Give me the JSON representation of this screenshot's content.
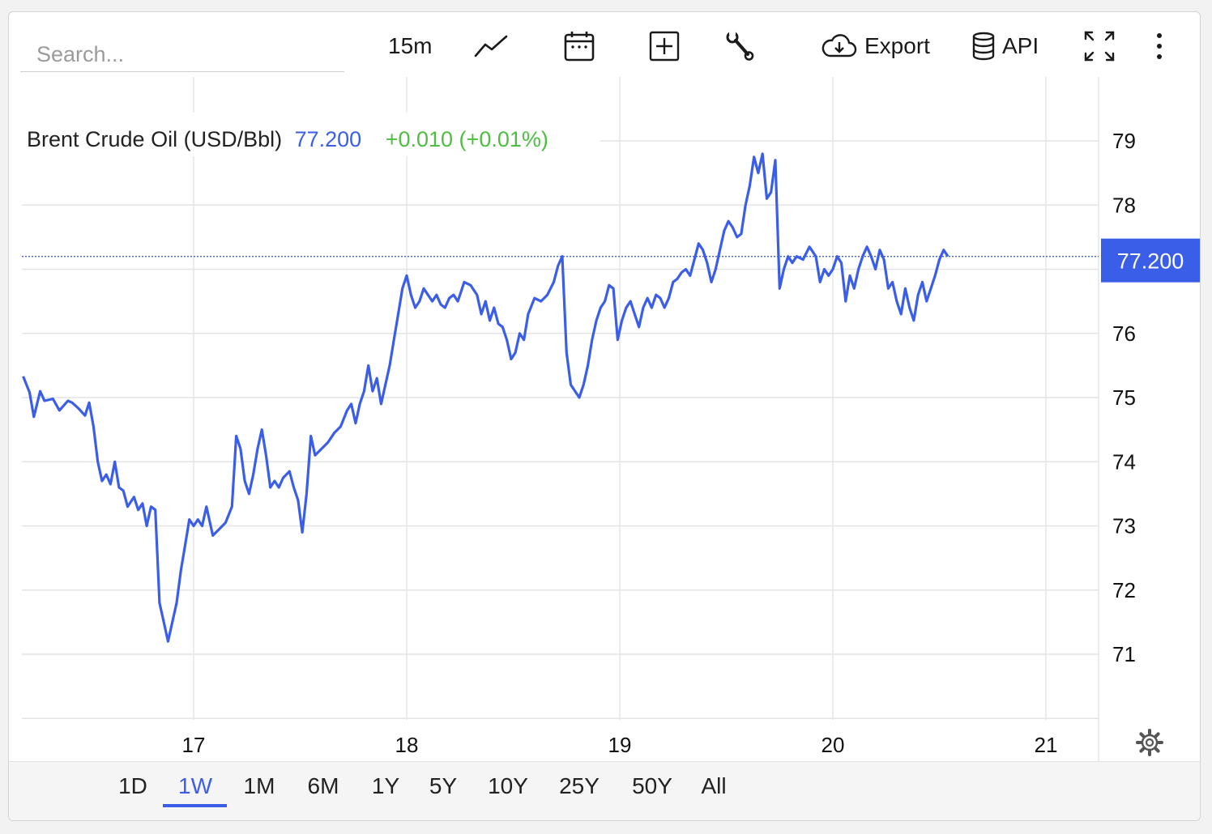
{
  "toolbar": {
    "search_placeholder": "Search...",
    "interval": "15m",
    "export_label": "Export",
    "api_label": "API",
    "icons": [
      "line-chart-icon",
      "calendar-icon",
      "add-box-icon",
      "wrench-icon",
      "cloud-download-icon",
      "database-icon",
      "fullscreen-icon",
      "more-vertical-icon"
    ]
  },
  "legend": {
    "title": "Brent Crude Oil (USD/Bbl)",
    "price": "77.200",
    "change": "+0.010 (+0.01%)"
  },
  "price_tag": "77.200",
  "ranges": [
    "1D",
    "1W",
    "1M",
    "6M",
    "1Y",
    "5Y",
    "10Y",
    "25Y",
    "50Y",
    "All"
  ],
  "active_range": "1W",
  "colors": {
    "line": "#3b5ee8",
    "up": "#4dbf3f",
    "tag_bg": "#3b5ee8",
    "grid": "#e4e4e4"
  },
  "chart_data": {
    "type": "line",
    "title": "Brent Crude Oil (USD/Bbl)",
    "x_unit": "day",
    "xlim": [
      16.2,
      21.25
    ],
    "ylim": [
      70.0,
      79.8
    ],
    "x_ticks": [
      17,
      18,
      19,
      20,
      21
    ],
    "y_ticks": [
      71,
      72,
      73,
      74,
      75,
      76,
      77,
      78,
      79
    ],
    "last_value": 77.2,
    "grid": true,
    "series": [
      {
        "name": "Brent Crude Oil",
        "points": [
          [
            16.2,
            75.33
          ],
          [
            16.23,
            75.08
          ],
          [
            16.25,
            74.7
          ],
          [
            16.28,
            75.1
          ],
          [
            16.3,
            74.95
          ],
          [
            16.34,
            74.98
          ],
          [
            16.37,
            74.8
          ],
          [
            16.41,
            74.95
          ],
          [
            16.43,
            74.92
          ],
          [
            16.46,
            74.83
          ],
          [
            16.49,
            74.72
          ],
          [
            16.51,
            74.92
          ],
          [
            16.53,
            74.55
          ],
          [
            16.55,
            74.0
          ],
          [
            16.57,
            73.7
          ],
          [
            16.59,
            73.8
          ],
          [
            16.61,
            73.65
          ],
          [
            16.63,
            74.0
          ],
          [
            16.65,
            73.6
          ],
          [
            16.67,
            73.55
          ],
          [
            16.69,
            73.3
          ],
          [
            16.72,
            73.45
          ],
          [
            16.74,
            73.25
          ],
          [
            16.76,
            73.35
          ],
          [
            16.78,
            73.0
          ],
          [
            16.8,
            73.3
          ],
          [
            16.82,
            73.25
          ],
          [
            16.84,
            71.8
          ],
          [
            16.86,
            71.5
          ],
          [
            16.88,
            71.2
          ],
          [
            16.9,
            71.5
          ],
          [
            16.92,
            71.8
          ],
          [
            16.94,
            72.3
          ],
          [
            16.96,
            72.7
          ],
          [
            16.98,
            73.1
          ],
          [
            17.0,
            73.0
          ],
          [
            17.02,
            73.1
          ],
          [
            17.04,
            73.0
          ],
          [
            17.06,
            73.3
          ],
          [
            17.09,
            72.85
          ],
          [
            17.12,
            72.95
          ],
          [
            17.15,
            73.05
          ],
          [
            17.18,
            73.3
          ],
          [
            17.2,
            74.4
          ],
          [
            17.22,
            74.2
          ],
          [
            17.24,
            73.7
          ],
          [
            17.26,
            73.5
          ],
          [
            17.28,
            73.8
          ],
          [
            17.3,
            74.2
          ],
          [
            17.32,
            74.5
          ],
          [
            17.34,
            74.1
          ],
          [
            17.36,
            73.6
          ],
          [
            17.38,
            73.7
          ],
          [
            17.4,
            73.6
          ],
          [
            17.42,
            73.75
          ],
          [
            17.45,
            73.85
          ],
          [
            17.47,
            73.6
          ],
          [
            17.49,
            73.4
          ],
          [
            17.51,
            72.9
          ],
          [
            17.53,
            73.5
          ],
          [
            17.55,
            74.4
          ],
          [
            17.57,
            74.1
          ],
          [
            17.6,
            74.2
          ],
          [
            17.63,
            74.3
          ],
          [
            17.66,
            74.45
          ],
          [
            17.69,
            74.55
          ],
          [
            17.72,
            74.8
          ],
          [
            17.74,
            74.9
          ],
          [
            17.76,
            74.6
          ],
          [
            17.78,
            74.9
          ],
          [
            17.8,
            75.1
          ],
          [
            17.82,
            75.5
          ],
          [
            17.84,
            75.1
          ],
          [
            17.86,
            75.3
          ],
          [
            17.88,
            74.9
          ],
          [
            17.9,
            75.2
          ],
          [
            17.92,
            75.5
          ],
          [
            17.94,
            75.9
          ],
          [
            17.96,
            76.3
          ],
          [
            17.98,
            76.7
          ],
          [
            18.0,
            76.9
          ],
          [
            18.02,
            76.6
          ],
          [
            18.04,
            76.4
          ],
          [
            18.06,
            76.5
          ],
          [
            18.08,
            76.7
          ],
          [
            18.1,
            76.6
          ],
          [
            18.12,
            76.5
          ],
          [
            18.14,
            76.6
          ],
          [
            18.16,
            76.45
          ],
          [
            18.18,
            76.4
          ],
          [
            18.2,
            76.55
          ],
          [
            18.22,
            76.6
          ],
          [
            18.24,
            76.5
          ],
          [
            18.27,
            76.8
          ],
          [
            18.3,
            76.75
          ],
          [
            18.33,
            76.6
          ],
          [
            18.35,
            76.3
          ],
          [
            18.37,
            76.5
          ],
          [
            18.39,
            76.2
          ],
          [
            18.41,
            76.4
          ],
          [
            18.43,
            76.15
          ],
          [
            18.45,
            76.1
          ],
          [
            18.47,
            75.9
          ],
          [
            18.49,
            75.6
          ],
          [
            18.51,
            75.7
          ],
          [
            18.53,
            76.0
          ],
          [
            18.55,
            75.9
          ],
          [
            18.57,
            76.3
          ],
          [
            18.6,
            76.55
          ],
          [
            18.63,
            76.5
          ],
          [
            18.66,
            76.6
          ],
          [
            18.69,
            76.8
          ],
          [
            18.71,
            77.05
          ],
          [
            18.73,
            77.2
          ],
          [
            18.75,
            75.7
          ],
          [
            18.77,
            75.2
          ],
          [
            18.79,
            75.1
          ],
          [
            18.81,
            75.0
          ],
          [
            18.83,
            75.2
          ],
          [
            18.85,
            75.5
          ],
          [
            18.87,
            75.9
          ],
          [
            18.89,
            76.2
          ],
          [
            18.91,
            76.4
          ],
          [
            18.93,
            76.5
          ],
          [
            18.95,
            76.75
          ],
          [
            18.97,
            76.7
          ],
          [
            18.99,
            75.9
          ],
          [
            19.01,
            76.2
          ],
          [
            19.03,
            76.4
          ],
          [
            19.05,
            76.5
          ],
          [
            19.07,
            76.3
          ],
          [
            19.09,
            76.1
          ],
          [
            19.11,
            76.4
          ],
          [
            19.13,
            76.55
          ],
          [
            19.15,
            76.4
          ],
          [
            19.17,
            76.6
          ],
          [
            19.19,
            76.55
          ],
          [
            19.21,
            76.4
          ],
          [
            19.23,
            76.55
          ],
          [
            19.25,
            76.8
          ],
          [
            19.27,
            76.85
          ],
          [
            19.29,
            76.95
          ],
          [
            19.31,
            77.0
          ],
          [
            19.33,
            76.9
          ],
          [
            19.35,
            77.15
          ],
          [
            19.37,
            77.4
          ],
          [
            19.39,
            77.3
          ],
          [
            19.41,
            77.1
          ],
          [
            19.43,
            76.8
          ],
          [
            19.45,
            77.0
          ],
          [
            19.47,
            77.3
          ],
          [
            19.49,
            77.6
          ],
          [
            19.51,
            77.75
          ],
          [
            19.53,
            77.65
          ],
          [
            19.55,
            77.5
          ],
          [
            19.57,
            77.55
          ],
          [
            19.59,
            78.0
          ],
          [
            19.61,
            78.3
          ],
          [
            19.63,
            78.75
          ],
          [
            19.65,
            78.5
          ],
          [
            19.67,
            78.8
          ],
          [
            19.69,
            78.1
          ],
          [
            19.71,
            78.2
          ],
          [
            19.73,
            78.7
          ],
          [
            19.75,
            76.7
          ],
          [
            19.77,
            77.0
          ],
          [
            19.79,
            77.2
          ],
          [
            19.81,
            77.1
          ],
          [
            19.83,
            77.2
          ],
          [
            19.86,
            77.15
          ],
          [
            19.89,
            77.35
          ],
          [
            19.92,
            77.2
          ],
          [
            19.94,
            76.8
          ],
          [
            19.96,
            77.0
          ],
          [
            19.98,
            76.9
          ],
          [
            20.0,
            77.0
          ],
          [
            20.02,
            77.2
          ],
          [
            20.04,
            77.1
          ],
          [
            20.06,
            76.5
          ],
          [
            20.08,
            76.9
          ],
          [
            20.1,
            76.7
          ],
          [
            20.12,
            77.0
          ],
          [
            20.14,
            77.2
          ],
          [
            20.16,
            77.35
          ],
          [
            20.18,
            77.2
          ],
          [
            20.2,
            77.0
          ],
          [
            20.22,
            77.3
          ],
          [
            20.24,
            77.15
          ],
          [
            20.26,
            76.7
          ],
          [
            20.28,
            76.8
          ],
          [
            20.3,
            76.5
          ],
          [
            20.32,
            76.3
          ],
          [
            20.34,
            76.7
          ],
          [
            20.36,
            76.4
          ],
          [
            20.38,
            76.2
          ],
          [
            20.4,
            76.6
          ],
          [
            20.42,
            76.8
          ],
          [
            20.44,
            76.5
          ],
          [
            20.46,
            76.7
          ],
          [
            20.48,
            76.9
          ],
          [
            20.5,
            77.15
          ],
          [
            20.52,
            77.3
          ],
          [
            20.54,
            77.2
          ]
        ]
      }
    ]
  }
}
